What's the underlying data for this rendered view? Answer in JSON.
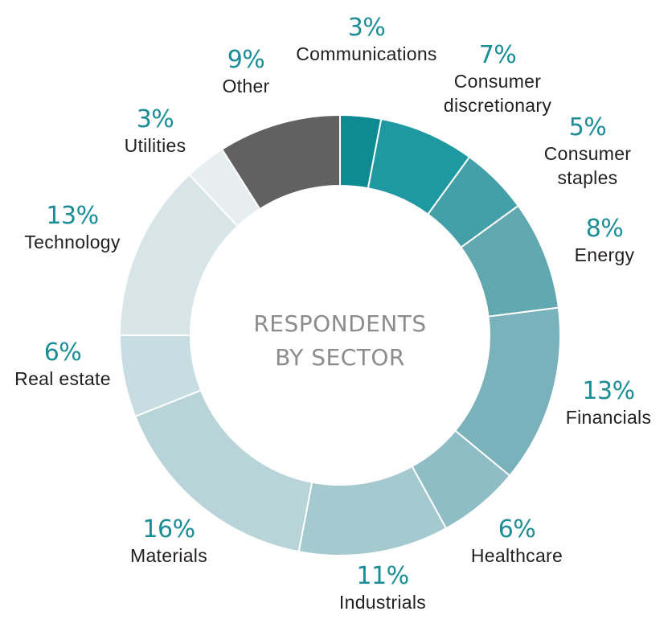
{
  "chart_data": {
    "type": "pie",
    "style": "donut",
    "center_title_lines": [
      "RESPONDENTS",
      "BY SECTOR"
    ],
    "slices": [
      {
        "name": "Communications",
        "name_lines": [
          "Communications"
        ],
        "value": 3,
        "label": "3%",
        "color": "#0e8a93"
      },
      {
        "name": "Consumer discretionary",
        "name_lines": [
          "Consumer",
          "discretionary"
        ],
        "value": 7,
        "label": "7%",
        "color": "#1e98a1"
      },
      {
        "name": "Consumer staples",
        "name_lines": [
          "Consumer",
          "staples"
        ],
        "value": 5,
        "label": "5%",
        "color": "#439fa8"
      },
      {
        "name": "Energy",
        "name_lines": [
          "Energy"
        ],
        "value": 8,
        "label": "8%",
        "color": "#62a8b1"
      },
      {
        "name": "Financials",
        "name_lines": [
          "Financials"
        ],
        "value": 13,
        "label": "13%",
        "color": "#79b2bb"
      },
      {
        "name": "Healthcare",
        "name_lines": [
          "Healthcare"
        ],
        "value": 6,
        "label": "6%",
        "color": "#8ebdc5"
      },
      {
        "name": "Industrials",
        "name_lines": [
          "Industrials"
        ],
        "value": 11,
        "label": "11%",
        "color": "#a4c9cf"
      },
      {
        "name": "Materials",
        "name_lines": [
          "Materials"
        ],
        "value": 16,
        "label": "16%",
        "color": "#b8d4d9"
      },
      {
        "name": "Real estate",
        "name_lines": [
          "Real estate"
        ],
        "value": 6,
        "label": "6%",
        "color": "#c7dde1"
      },
      {
        "name": "Technology",
        "name_lines": [
          "Technology"
        ],
        "value": 13,
        "label": "13%",
        "color": "#d7e5e8"
      },
      {
        "name": "Utilities",
        "name_lines": [
          "Utilities"
        ],
        "value": 3,
        "label": "3%",
        "color": "#e6eef0"
      },
      {
        "name": "Other",
        "name_lines": [
          "Other"
        ],
        "value": 9,
        "label": "9%",
        "color": "#616161"
      }
    ],
    "percent_label_color": "#1a8d96",
    "legend": "none"
  }
}
